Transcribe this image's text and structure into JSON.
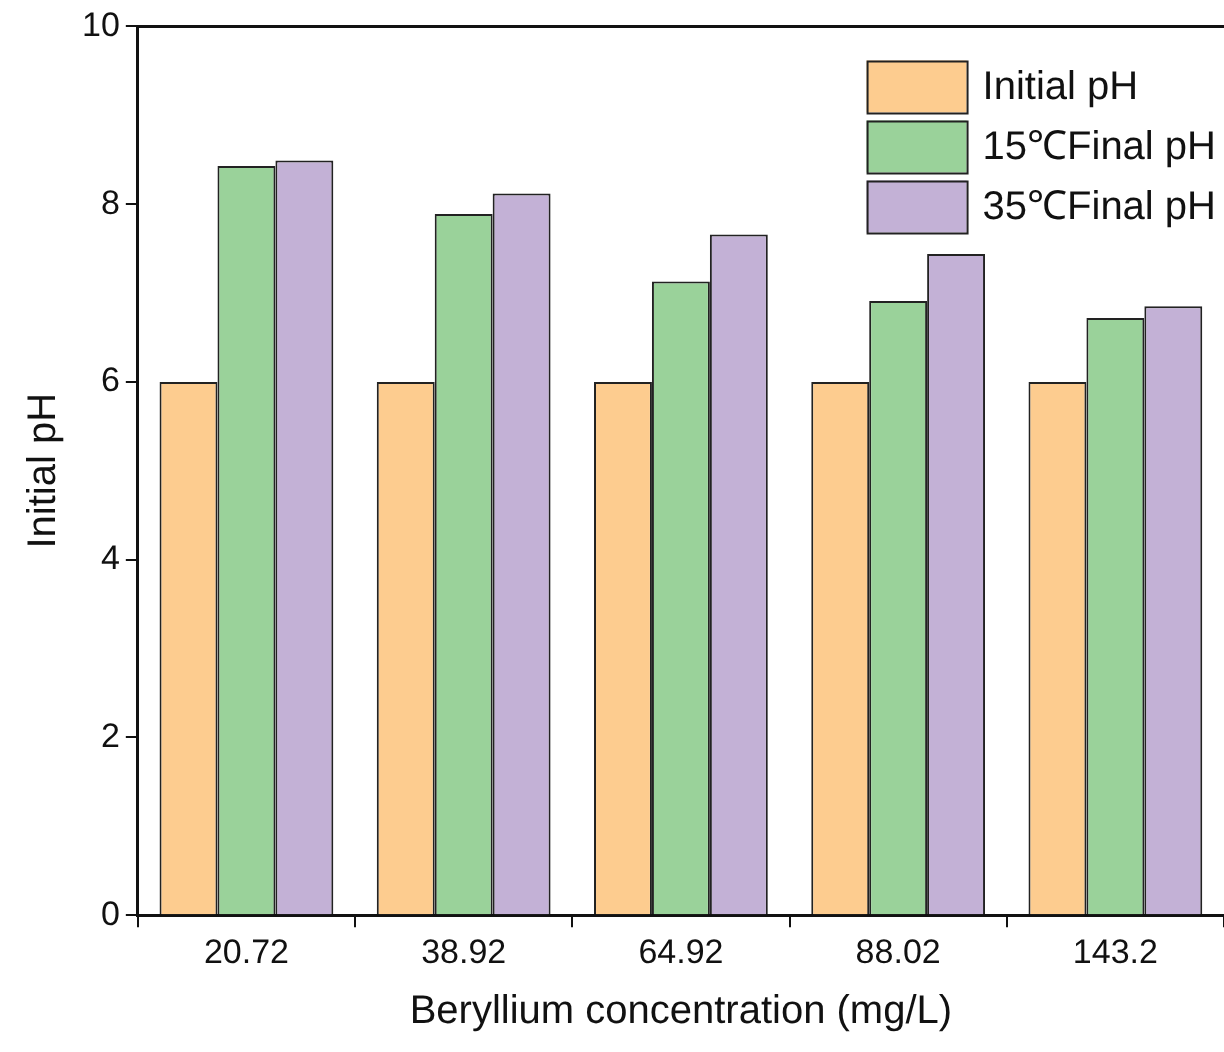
{
  "chart_data": {
    "type": "bar",
    "xlabel": "Beryllium concentration (mg/L)",
    "ylabel": "Initial pH",
    "categories": [
      "20.72",
      "38.92",
      "64.92",
      "88.02",
      "143.2"
    ],
    "series": [
      {
        "name": "Initial pH",
        "color": "#fdcc8f",
        "values": [
          6,
          6,
          6,
          6,
          6
        ]
      },
      {
        "name": "15℃Final pH",
        "color": "#9ad29a",
        "values": [
          8.43,
          7.89,
          7.13,
          6.91,
          6.72
        ]
      },
      {
        "name": "35℃Final pH",
        "color": "#c3b1d6",
        "values": [
          8.49,
          8.12,
          7.66,
          7.44,
          6.85
        ]
      }
    ],
    "ylim": [
      0,
      10
    ],
    "yticks": [
      0,
      2,
      4,
      6,
      8,
      10
    ],
    "grid": false,
    "legend": "top right"
  }
}
